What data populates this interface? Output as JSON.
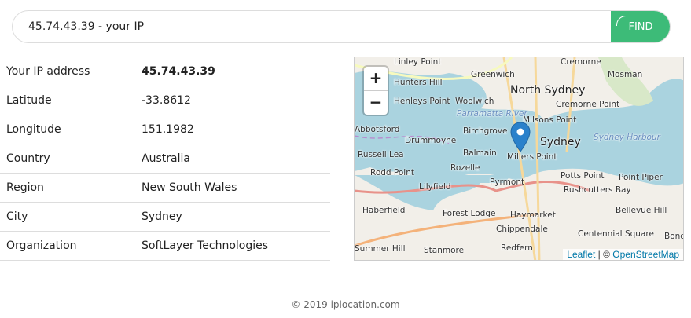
{
  "search": {
    "value": "45.74.43.39 - your IP",
    "button": "FIND"
  },
  "rows": [
    {
      "label": "Your IP address",
      "value": "45.74.43.39"
    },
    {
      "label": "Latitude",
      "value": "-33.8612"
    },
    {
      "label": "Longitude",
      "value": "151.1982"
    },
    {
      "label": "Country",
      "value": "Australia"
    },
    {
      "label": "Region",
      "value": "New South Wales"
    },
    {
      "label": "City",
      "value": "Sydney"
    },
    {
      "label": "Organization",
      "value": "SoftLayer Technologies"
    }
  ],
  "map": {
    "zoom_in": "+",
    "zoom_out": "−",
    "attribution": {
      "leaflet": "Leaflet",
      "sep": " | © ",
      "osm": "OpenStreetMap"
    },
    "marker_icon": "map-pin-icon",
    "colors": {
      "water": "#aad3df",
      "land": "#f2efe9",
      "marker": "#2a81cb"
    },
    "labels": [
      "Linley Point",
      "Greenwich",
      "Cremorne",
      "Mosman",
      "Hunters Hill",
      "North Sydney",
      "Henleys Point",
      "Woolwich",
      "Parramatta River",
      "Cremorne Point",
      "Milsons Point",
      "Abbotsford",
      "Drummoyne",
      "Birchgrove",
      "Sydney",
      "Sydney Harbour",
      "Russell Lea",
      "Balmain",
      "Millers Point",
      "Rodd Point",
      "Rozelle",
      "Potts Point",
      "Point Piper",
      "Lilyfield",
      "Pyrmont",
      "Rushcutters Bay",
      "Haberfield",
      "Forest Lodge",
      "Haymarket",
      "Bellevue Hill",
      "Chippendale",
      "Centennial Square",
      "Summer Hill",
      "Stanmore",
      "Redfern",
      "Bondi"
    ]
  },
  "footer": "© 2019 iplocation.com"
}
